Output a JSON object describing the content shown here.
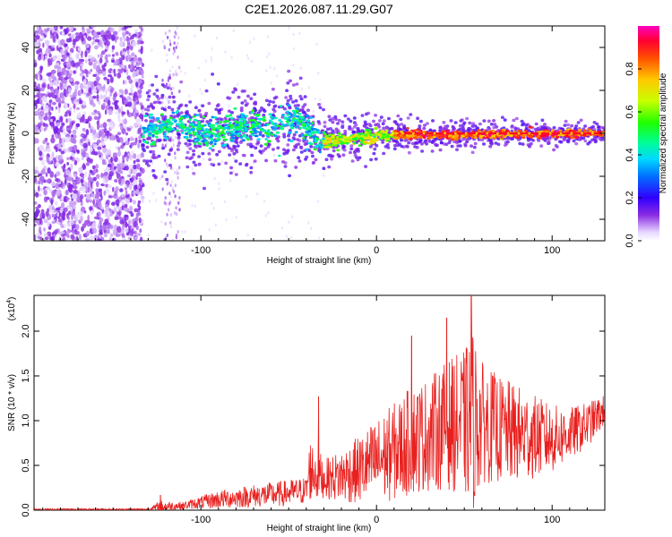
{
  "title": "C2E1.2026.087.11.29.G07",
  "chart_data": [
    {
      "type": "heatmap",
      "name": "spectrogram",
      "xlabel": "Height of straight line (km)",
      "ylabel": "Frequency (Hz)",
      "xlim": [
        -195,
        130
      ],
      "ylim": [
        -50,
        50
      ],
      "x_ticks": [
        -100,
        0,
        100
      ],
      "y_ticks": [
        -40,
        -20,
        0,
        20,
        40
      ],
      "x_tick_labels": [
        "-100",
        "0",
        "100"
      ],
      "y_tick_labels": [
        "-40",
        "-20",
        "0",
        "20",
        "40"
      ],
      "colorbar": {
        "label": "Normalized spectral amplitude",
        "range": [
          0,
          1
        ],
        "ticks": [
          0,
          0.2,
          0.4,
          0.6,
          0.8
        ],
        "tick_labels": [
          "0.0",
          "0.2",
          "0.4",
          "0.6",
          "0.8"
        ]
      },
      "features": {
        "noise_region_x": [
          -195,
          -133
        ],
        "isolated_strips_x": [
          -122,
          -112
        ],
        "signal_start_x": -133,
        "signal_line_frequency_hz": 0
      }
    },
    {
      "type": "line",
      "name": "snr",
      "xlabel": "Height of straight line (km)",
      "ylabel": "SNR (10 * v/v)",
      "scale_label": "(x10^4)",
      "scale_text": "(x10",
      "scale_exp": "4",
      "scale_close": ")",
      "xlim": [
        -195,
        130
      ],
      "ylim": [
        0,
        2.4
      ],
      "x_ticks": [
        -100,
        0,
        100
      ],
      "y_ticks": [
        0,
        0.5,
        1.0,
        1.5,
        2.0
      ],
      "x_tick_labels": [
        "-100",
        "0",
        "100"
      ],
      "y_tick_labels": [
        "0.0",
        "0.5",
        "1.0",
        "1.5",
        "2.0"
      ],
      "color": "#e8201e",
      "envelope": {
        "x": [
          -195,
          -130,
          -123,
          -110,
          -90,
          -70,
          -55,
          -40,
          -38,
          -33,
          -30,
          -20,
          -10,
          0,
          10,
          20,
          30,
          40,
          50,
          55,
          60,
          70,
          80,
          90,
          100,
          110,
          120,
          130
        ],
        "mean": [
          0.01,
          0.01,
          0.04,
          0.05,
          0.12,
          0.16,
          0.18,
          0.22,
          0.45,
          0.4,
          0.35,
          0.38,
          0.45,
          0.55,
          0.65,
          0.78,
          0.85,
          0.95,
          0.98,
          1.0,
          0.98,
          0.9,
          0.85,
          0.82,
          0.8,
          0.85,
          0.95,
          1.12
        ],
        "amp": [
          0.01,
          0.01,
          0.08,
          0.05,
          0.12,
          0.15,
          0.17,
          0.18,
          0.42,
          0.35,
          0.25,
          0.35,
          0.45,
          0.55,
          0.65,
          0.72,
          0.75,
          0.85,
          0.95,
          1.2,
          0.8,
          0.7,
          0.65,
          0.55,
          0.45,
          0.35,
          0.3,
          0.2
        ]
      },
      "peaks": [
        {
          "x": -123,
          "y": 0.17
        },
        {
          "x": -33,
          "y": 1.27
        },
        {
          "x": 54,
          "y": 2.4
        },
        {
          "x": 20,
          "y": 1.95
        },
        {
          "x": 40,
          "y": 2.15
        }
      ]
    }
  ]
}
